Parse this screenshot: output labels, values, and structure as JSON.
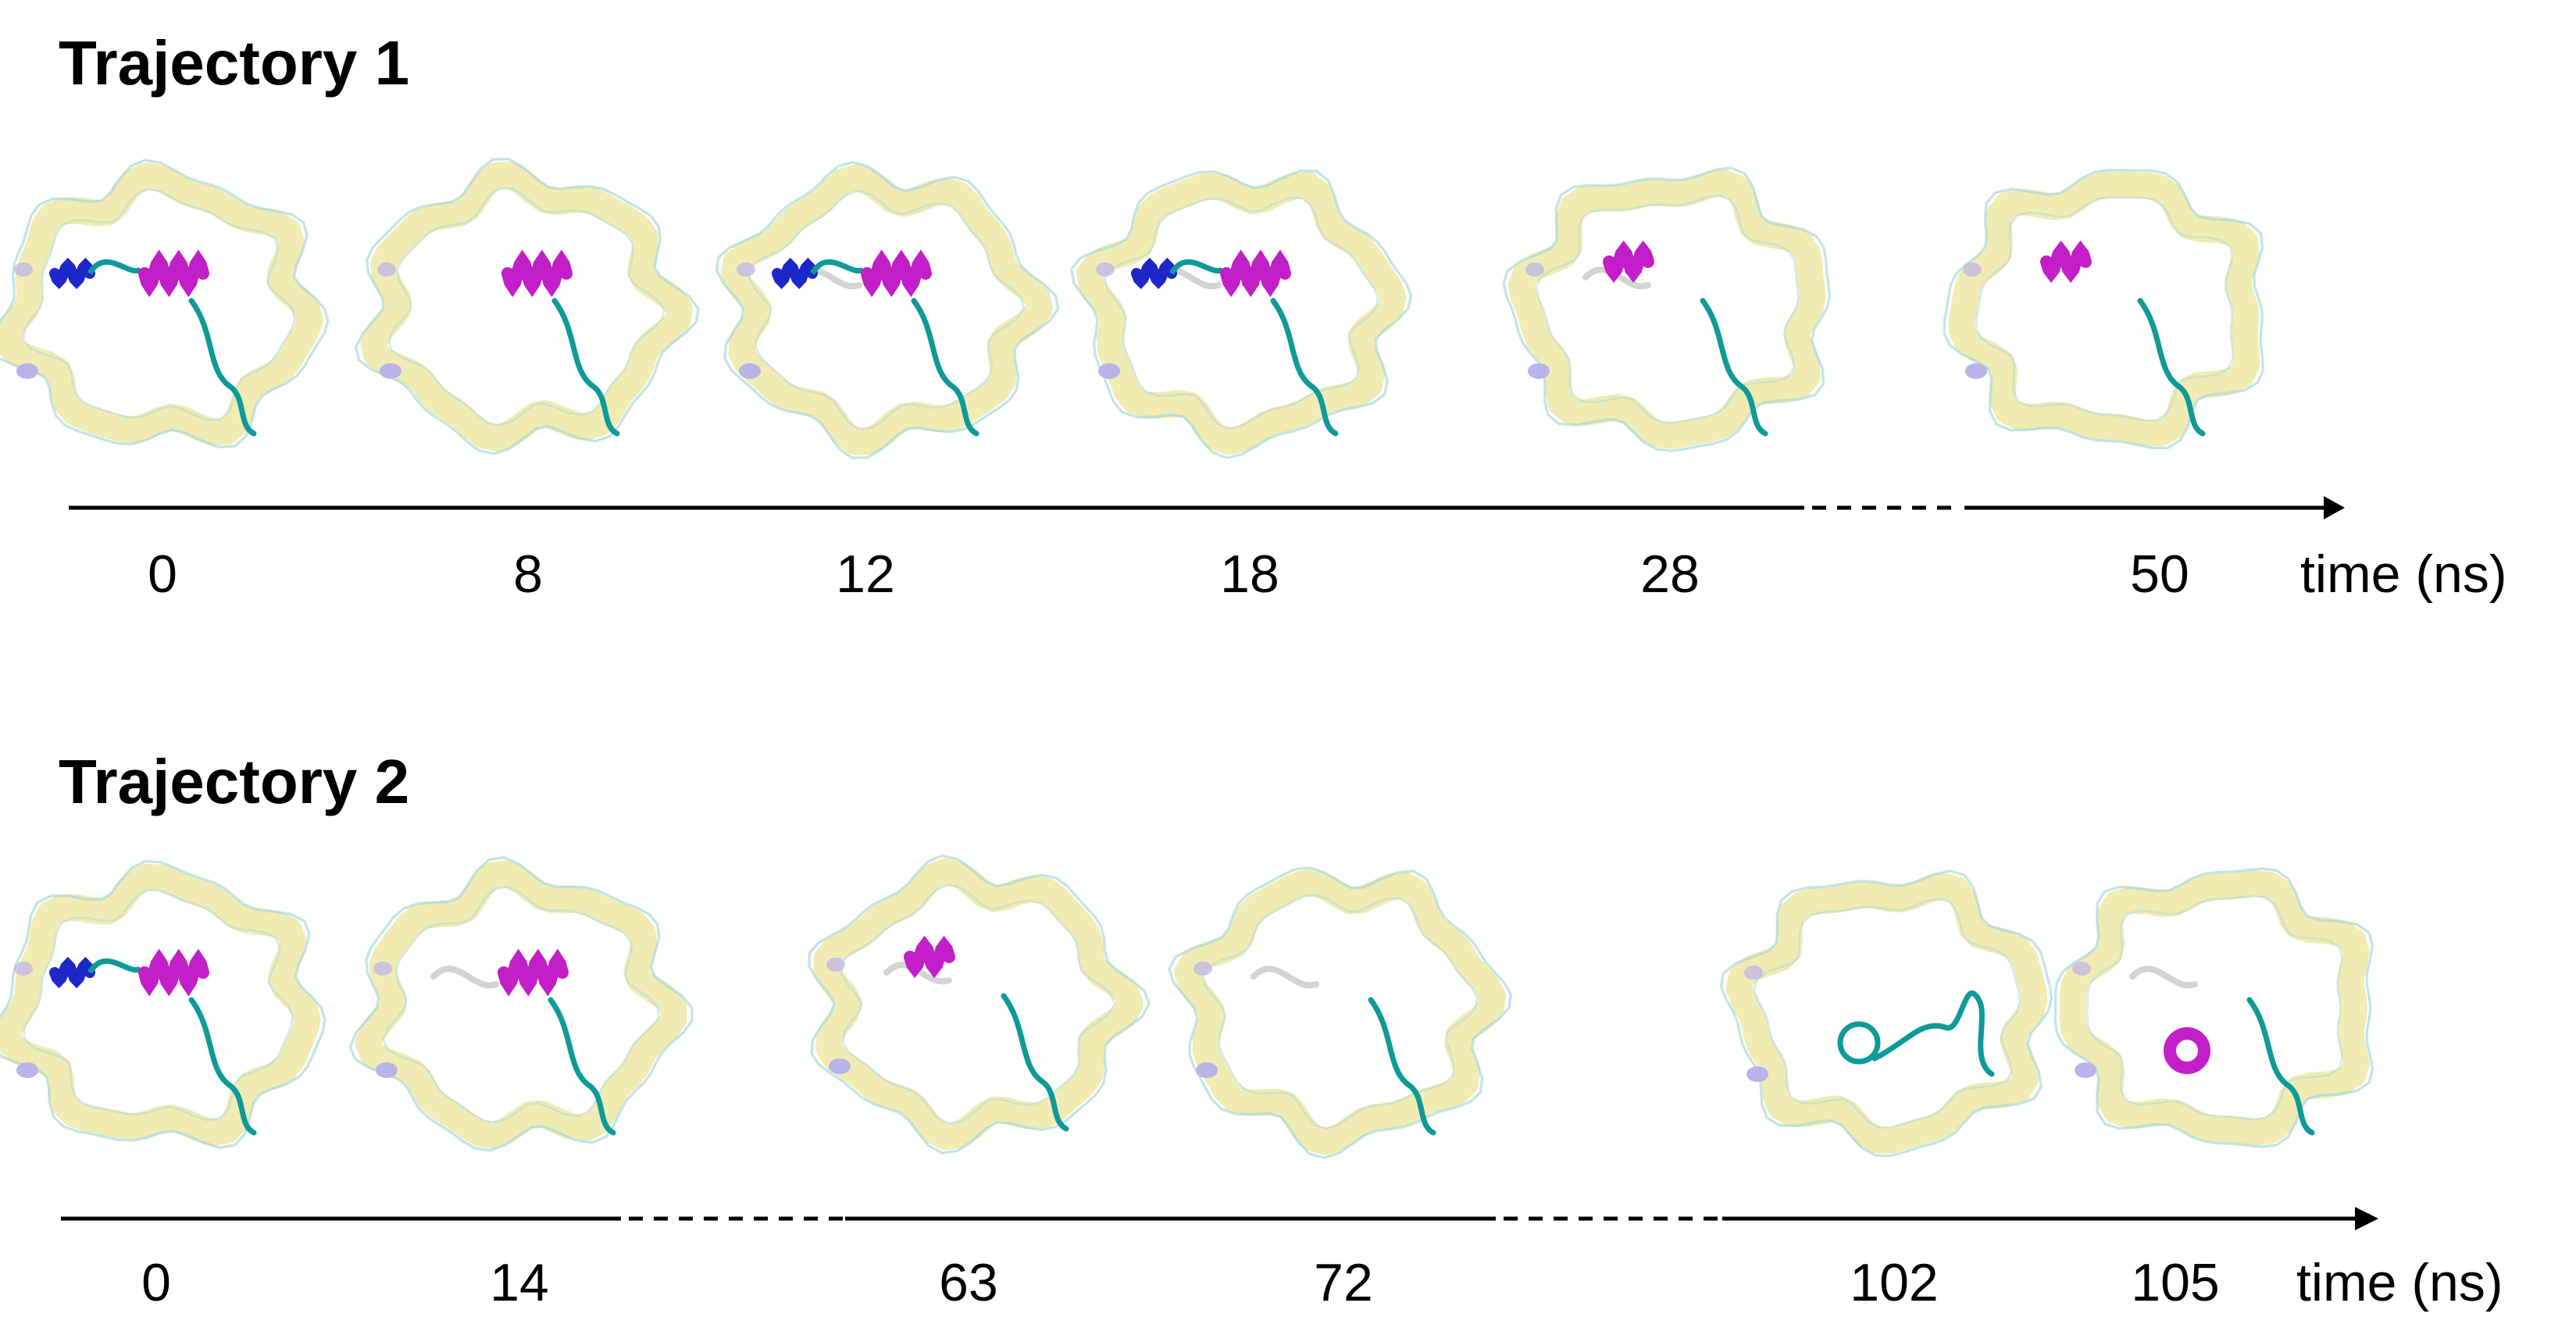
{
  "colors": {
    "pore": "#efe9a6",
    "pore_loop": "#a9dcdc",
    "helix_magenta": "#c21fc8",
    "helix_blue": "#1e27c8",
    "coil_teal": "#0f9a9a",
    "coil_white": "#d4d4d4",
    "bead_lavender": "#b8b4ea",
    "axis": "#000000"
  },
  "axis_unit_label": "time (ns)",
  "trajectories": [
    {
      "title": "Trajectory 1",
      "ticks": [
        "0",
        "8",
        "12",
        "18",
        "28",
        "50"
      ],
      "snapshots": [
        {
          "time": "0",
          "blue_helix": true,
          "magenta_helix": "long",
          "coil": "teal"
        },
        {
          "time": "8",
          "blue_helix": false,
          "magenta_helix": "long",
          "coil": "teal"
        },
        {
          "time": "12",
          "blue_helix": true,
          "magenta_helix": "long",
          "coil": "mixed"
        },
        {
          "time": "18",
          "blue_helix": true,
          "magenta_helix": "long",
          "coil": "mixed"
        },
        {
          "time": "28",
          "blue_helix": false,
          "magenta_helix": "short",
          "coil": "mixed"
        },
        {
          "time": "50",
          "blue_helix": false,
          "magenta_helix": "short",
          "coil": "teal"
        }
      ]
    },
    {
      "title": "Trajectory 2",
      "ticks": [
        "0",
        "14",
        "63",
        "72",
        "102",
        "105"
      ],
      "snapshots": [
        {
          "time": "0",
          "blue_helix": true,
          "magenta_helix": "long",
          "coil": "teal"
        },
        {
          "time": "14",
          "blue_helix": false,
          "magenta_helix": "long",
          "coil": "mixed"
        },
        {
          "time": "63",
          "blue_helix": false,
          "magenta_helix": "short",
          "coil": "mixed"
        },
        {
          "time": "72",
          "blue_helix": false,
          "magenta_helix": "none",
          "coil": "mixed"
        },
        {
          "time": "102",
          "blue_helix": false,
          "magenta_helix": "none",
          "coil": "loop"
        },
        {
          "time": "105",
          "blue_helix": false,
          "magenta_helix": "curl",
          "coil": "mixed"
        }
      ]
    }
  ]
}
